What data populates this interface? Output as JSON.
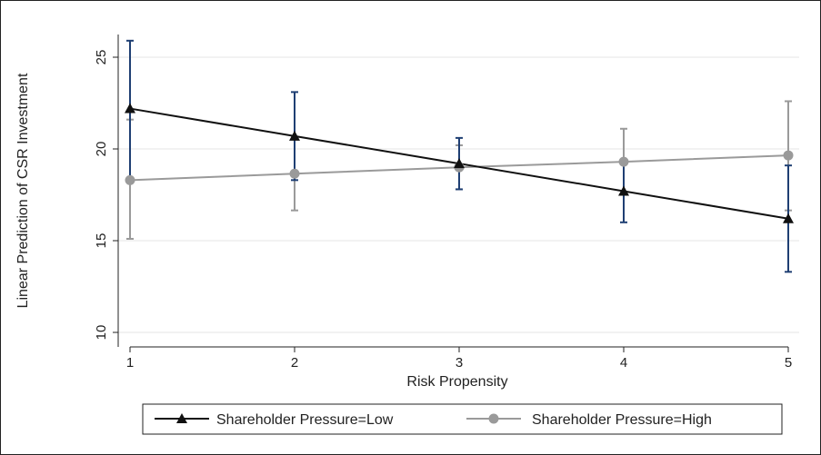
{
  "chart_data": {
    "type": "line",
    "title": "",
    "xlabel": "Risk Propensity",
    "ylabel": "Linear Prediction of CSR Investment",
    "x": [
      1,
      2,
      3,
      4,
      5
    ],
    "xlim": [
      1,
      5
    ],
    "ylim": [
      10,
      26
    ],
    "x_ticks": [
      "1",
      "2",
      "3",
      "4",
      "5"
    ],
    "y_ticks": [
      "10",
      "15",
      "20",
      "25"
    ],
    "grid": "horizontal",
    "legend_position": "bottom",
    "series": [
      {
        "name": "Shareholder Pressure=Low",
        "marker": "triangle",
        "color": "#111111",
        "error_bar_color": "#1f3f73",
        "values": [
          22.2,
          20.7,
          19.2,
          17.7,
          16.2
        ],
        "ci_low": [
          18.4,
          18.3,
          17.8,
          16.0,
          13.3
        ],
        "ci_high": [
          25.9,
          23.1,
          20.6,
          19.4,
          19.1
        ]
      },
      {
        "name": "Shareholder Pressure=High",
        "marker": "circle",
        "color": "#9a9a9a",
        "error_bar_color": "#9a9a9a",
        "values": [
          18.3,
          18.65,
          19.0,
          19.3,
          19.65
        ],
        "ci_low": [
          15.1,
          16.65,
          17.8,
          17.5,
          16.65
        ],
        "ci_high": [
          21.6,
          20.65,
          20.2,
          21.1,
          22.6
        ]
      }
    ]
  }
}
